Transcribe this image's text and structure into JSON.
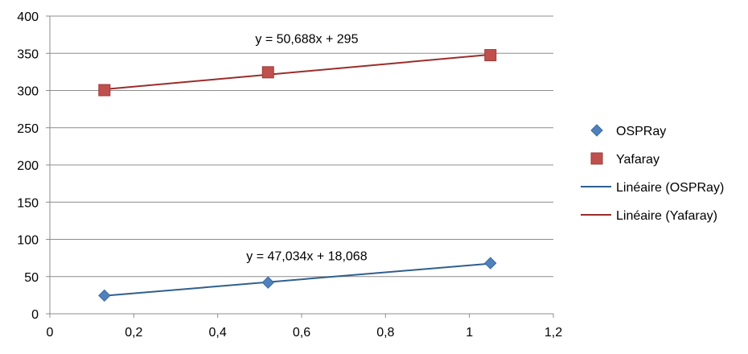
{
  "chart_data": {
    "type": "scatter",
    "title": "",
    "xlabel": "",
    "ylabel": "",
    "xlim": [
      0,
      1.2
    ],
    "ylim": [
      0,
      400
    ],
    "x_ticks": [
      0,
      0.2,
      0.4,
      0.6,
      0.8,
      1,
      1.2
    ],
    "x_tick_labels": [
      "0",
      "0,2",
      "0,4",
      "0,6",
      "0,8",
      "1",
      "1,2"
    ],
    "y_ticks": [
      0,
      50,
      100,
      150,
      200,
      250,
      300,
      350,
      400
    ],
    "y_tick_labels": [
      "0",
      "50",
      "100",
      "150",
      "200",
      "250",
      "300",
      "350",
      "400"
    ],
    "grid": "horizontal",
    "legend_position": "right",
    "series": [
      {
        "name": "OSPRay",
        "marker": "diamond",
        "color": "#4F81BD",
        "points": [
          {
            "x": 0.13,
            "y": 24.5
          },
          {
            "x": 0.52,
            "y": 42
          },
          {
            "x": 1.05,
            "y": 68
          }
        ]
      },
      {
        "name": "Yafaray",
        "marker": "square",
        "color": "#C0504D",
        "points": [
          {
            "x": 0.13,
            "y": 300.5
          },
          {
            "x": 0.52,
            "y": 324.5
          },
          {
            "x": 1.05,
            "y": 347.5
          }
        ]
      }
    ],
    "trendlines": [
      {
        "name": "Linéaire (OSPRay)",
        "series": "OSPRay",
        "slope": 47.034,
        "intercept": 18.068,
        "color": "#2F5F8F",
        "x_range": [
          0.13,
          1.05
        ],
        "equation": "y = 47,034x + 18,068",
        "equation_at": {
          "x": 0.62,
          "y": 72
        }
      },
      {
        "name": "Linéaire (Yafaray)",
        "series": "Yafaray",
        "slope": 50.688,
        "intercept": 295,
        "color": "#9B2D2A",
        "x_range": [
          0.13,
          1.05
        ],
        "equation": "y = 50,688x + 295",
        "equation_at": {
          "x": 0.62,
          "y": 364
        }
      }
    ]
  }
}
